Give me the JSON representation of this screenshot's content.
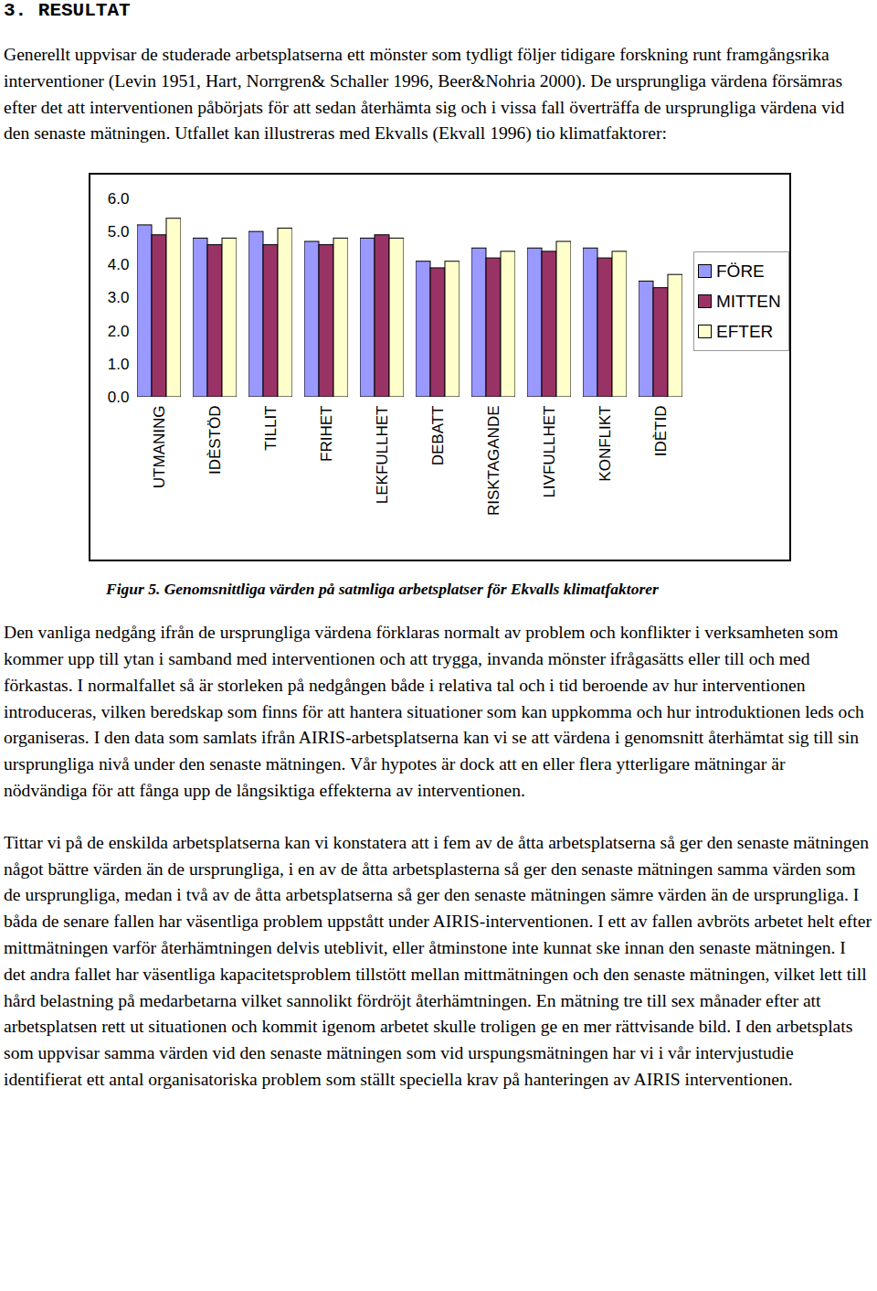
{
  "heading": "3. RESULTAT",
  "paragraphs_before": [
    "Generellt uppvisar de studerade arbetsplatserna ett mönster som tydligt följer tidigare forskning runt framgångsrika interventioner (Levin 1951, Hart, Norrgren& Schaller 1996, Beer&Nohria 2000). De ursprungliga värdena försämras efter det att interventionen påbörjats för att sedan återhämta sig och i vissa fall överträffa de ursprungliga värdena vid den senaste mätningen. Utfallet kan illustreras med Ekvalls (Ekvall 1996) tio klimatfaktorer:"
  ],
  "chart_data": {
    "type": "bar",
    "categories": [
      "UTMANING",
      "IDÈSTÖD",
      "TILLIT",
      "FRIHET",
      "LEKFULLHET",
      "DEBATT",
      "RISKTAGANDE",
      "LIVFULLHET",
      "KONFLIKT",
      "IDÈTID"
    ],
    "series": [
      {
        "name": "FÖRE",
        "color": "#9999ff",
        "values": [
          5.2,
          4.8,
          5.0,
          4.7,
          4.8,
          4.1,
          4.5,
          4.5,
          4.5,
          3.5
        ]
      },
      {
        "name": "MITTEN",
        "color": "#993366",
        "values": [
          4.9,
          4.6,
          4.6,
          4.6,
          4.9,
          3.9,
          4.2,
          4.4,
          4.2,
          3.3
        ]
      },
      {
        "name": "EFTER",
        "color": "#ffffcc",
        "values": [
          5.4,
          4.8,
          5.1,
          4.8,
          4.8,
          4.1,
          4.4,
          4.7,
          4.4,
          3.7
        ]
      }
    ],
    "ylim": [
      0,
      6
    ],
    "yticks": [
      0,
      1,
      2,
      3,
      4,
      5,
      6
    ],
    "grid": false,
    "legend": "right"
  },
  "caption": "Figur 5. Genomsnittliga värden på satmliga arbetsplatser för Ekvalls klimatfaktorer",
  "paragraphs_after": [
    "Den vanliga nedgång ifrån de ursprungliga värdena förklaras normalt av problem och konflikter i verksamheten som kommer upp till ytan i samband med interventionen och att trygga, invanda mönster ifrågasätts eller till och med förkastas. I normalfallet så är storleken på nedgången både i relativa tal och i tid beroende av hur interventionen introduceras, vilken beredskap som finns för att hantera situationer som kan uppkomma och hur introduktionen leds och organiseras. I den data som samlats ifrån AIRIS-arbetsplatserna kan vi se att värdena i genomsnitt återhämtat sig till sin ursprungliga nivå under den senaste mätningen. Vår hypotes är dock att en eller flera ytterligare mätningar är nödvändiga för att fånga upp de långsiktiga effekterna av interventionen.",
    "Tittar vi på de enskilda arbetsplatserna kan vi konstatera att i fem av de åtta arbetsplatserna så ger den senaste mätningen något bättre värden än de ursprungliga, i en av de åtta arbetsplasterna så ger den senaste mätningen samma värden som de ursprungliga, medan i två av de åtta arbetsplatserna så ger den senaste mätningen sämre värden än de ursprungliga. I båda de senare fallen har väsentliga problem uppstått under AIRIS-interventionen. I ett av fallen avbröts arbetet helt efter mittmätningen varför återhämtningen delvis uteblivit, eller åtminstone inte kunnat ske innan den senaste mätningen. I det andra fallet har väsentliga kapacitetsproblem tillstött mellan mittmätningen och den senaste mätningen, vilket lett till hård belastning på medarbetarna vilket sannolikt fördröjt återhämtningen. En mätning tre till sex månader efter att arbetsplatsen rett ut situationen och kommit igenom arbetet skulle troligen ge en mer rättvisande bild. I den arbetsplats som uppvisar samma värden vid den senaste mätningen som vid urspungsmätningen har vi i vår intervjustudie identifierat ett antal organisatoriska problem som ställt speciella krav på hanteringen av AIRIS interventionen."
  ]
}
